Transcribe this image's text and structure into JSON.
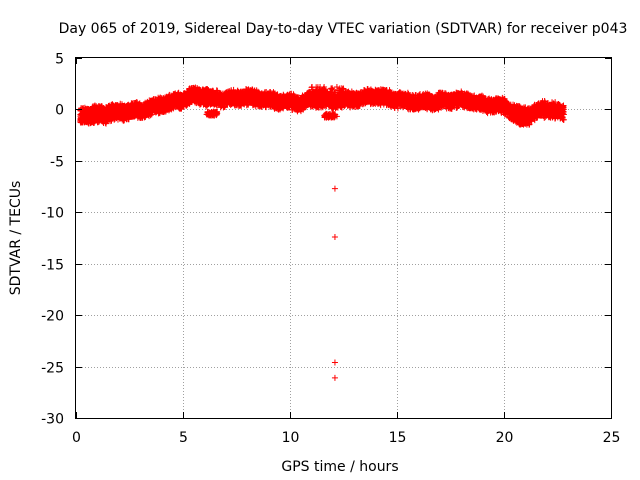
{
  "chart_data": {
    "type": "scatter",
    "title": "Day 065 of 2019, Sidereal Day-to-day VTEC variation (SDTVAR) for receiver p043",
    "xlabel": "GPS time / hours",
    "ylabel": "SDTVAR / TECUs",
    "xlim": [
      0,
      25
    ],
    "ylim": [
      -30,
      5
    ],
    "xticks": [
      0,
      5,
      10,
      15,
      20,
      25
    ],
    "yticks": [
      5,
      0,
      -5,
      -10,
      -15,
      -20,
      -25,
      -30
    ],
    "grid": true,
    "marker": "+",
    "series_color": "#ff0000",
    "band_trace": [
      [
        0.2,
        -0.6
      ],
      [
        1.0,
        -0.4
      ],
      [
        2.0,
        -0.3
      ],
      [
        3.0,
        -0.1
      ],
      [
        4.0,
        0.5
      ],
      [
        5.0,
        0.9
      ],
      [
        5.5,
        1.4
      ],
      [
        6.0,
        1.1
      ],
      [
        7.0,
        1.0
      ],
      [
        8.0,
        1.2
      ],
      [
        9.0,
        0.9
      ],
      [
        10.0,
        0.7
      ],
      [
        10.5,
        0.6
      ],
      [
        11.0,
        1.0
      ],
      [
        12.0,
        0.9
      ],
      [
        13.0,
        1.0
      ],
      [
        14.0,
        1.3
      ],
      [
        15.0,
        0.9
      ],
      [
        16.0,
        0.7
      ],
      [
        17.0,
        0.8
      ],
      [
        18.0,
        0.9
      ],
      [
        19.0,
        0.5
      ],
      [
        20.0,
        0.3
      ],
      [
        20.5,
        -0.4
      ],
      [
        21.0,
        -0.6
      ],
      [
        22.0,
        0.1
      ],
      [
        22.8,
        -0.4
      ]
    ],
    "band_spread": 0.7,
    "dips": [
      {
        "x": [
          6.1,
          6.6
        ],
        "y": [
          -0.2,
          -0.6
        ]
      },
      {
        "x": [
          11.6,
          12.2
        ],
        "y": [
          -0.4,
          -0.8
        ]
      },
      {
        "x": [
          20.6,
          21.2
        ],
        "y": [
          -1.0,
          -1.5
        ]
      },
      {
        "x": [
          0.2,
          1.5
        ],
        "y": [
          -0.8,
          -1.4
        ]
      }
    ],
    "bumps": [
      {
        "x": [
          11.0,
          12.5
        ],
        "y": [
          1.4,
          2.2
        ]
      },
      {
        "x": [
          5.2,
          6.2
        ],
        "y": [
          1.5,
          2.0
        ]
      },
      {
        "x": [
          13.5,
          14.5
        ],
        "y": [
          1.4,
          1.8
        ]
      }
    ],
    "outliers": [
      {
        "x": 12.1,
        "y": -7.7
      },
      {
        "x": 12.1,
        "y": -12.4
      },
      {
        "x": 12.1,
        "y": -24.6
      },
      {
        "x": 12.1,
        "y": -26.1
      }
    ]
  }
}
